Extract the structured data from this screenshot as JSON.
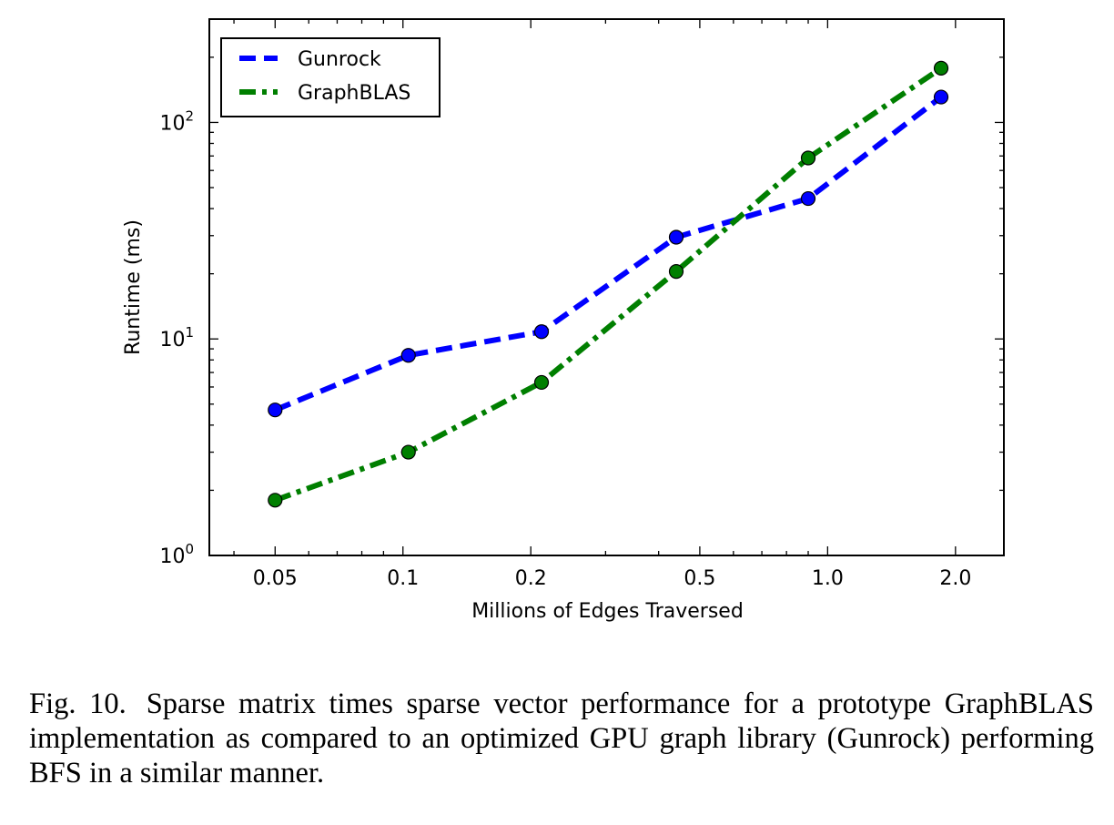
{
  "chart_data": {
    "type": "line",
    "title": "",
    "xlabel": "Millions of Edges Traversed",
    "ylabel": "Runtime (ms)",
    "x_scale": "log",
    "y_scale": "log",
    "xlim": [
      0.035,
      2.6
    ],
    "ylim": [
      1,
      300
    ],
    "x_ticks": [
      {
        "value": 0.05,
        "label": "0.05"
      },
      {
        "value": 0.1,
        "label": "0.1"
      },
      {
        "value": 0.2,
        "label": "0.2"
      },
      {
        "value": 0.5,
        "label": "0.5"
      },
      {
        "value": 1.0,
        "label": "1.0"
      },
      {
        "value": 2.0,
        "label": "2.0"
      }
    ],
    "y_ticks": [
      {
        "value": 1,
        "base": "10",
        "exp": "0"
      },
      {
        "value": 10,
        "base": "10",
        "exp": "1"
      },
      {
        "value": 100,
        "base": "10",
        "exp": "2"
      }
    ],
    "grid": false,
    "legend_position": "top-left",
    "series": [
      {
        "name": "Gunrock",
        "color": "#0000ff",
        "line_style": "dashed",
        "marker": "circle",
        "x": [
          0.05,
          0.103,
          0.212,
          0.44,
          0.9,
          1.85
        ],
        "y": [
          4.7,
          8.4,
          10.8,
          29.5,
          44.5,
          131
        ]
      },
      {
        "name": "GraphBLAS",
        "color": "#007f00",
        "line_style": "dashdot",
        "marker": "circle",
        "x": [
          0.05,
          0.103,
          0.212,
          0.44,
          0.9,
          1.85
        ],
        "y": [
          1.8,
          3.0,
          6.3,
          20.5,
          68.5,
          178
        ]
      }
    ]
  },
  "caption": {
    "label": "Fig. 10.",
    "text": "Sparse matrix times sparse vector performance for a prototype GraphBLAS implementation as compared to an optimized GPU graph library (Gunrock) performing BFS in a similar manner."
  }
}
